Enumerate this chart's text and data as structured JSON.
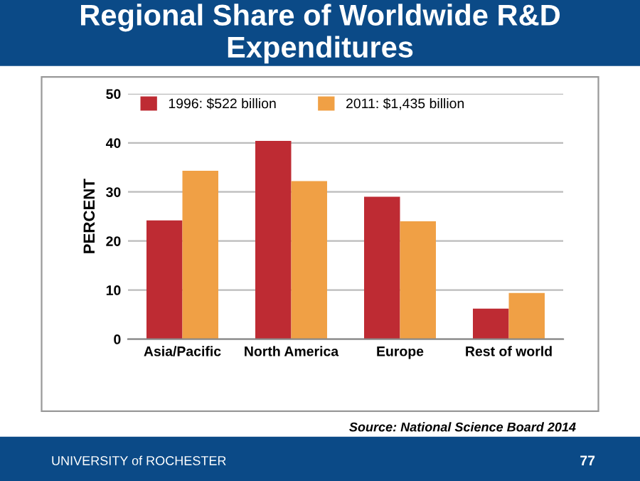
{
  "chart_data": {
    "type": "bar",
    "title": "Regional Share of Worldwide R&D Expenditures",
    "ylabel": "PERCENT",
    "categories": [
      "Asia/Pacific",
      "North America",
      "Europe",
      "Rest of world"
    ],
    "series": [
      {
        "name": "1996: $522 billion",
        "color": "#be2b33",
        "values": [
          24.2,
          40.4,
          29.0,
          6.2
        ]
      },
      {
        "name": "2011: $1,435 billion",
        "color": "#f0a045",
        "values": [
          34.3,
          32.2,
          24.0,
          9.4
        ]
      }
    ],
    "ylim": [
      0,
      50
    ],
    "yticks": [
      0,
      10,
      20,
      30,
      40,
      50
    ],
    "grid": "y",
    "legend": "top left",
    "annotations": [
      "Source: National Science Board 2014",
      "UNIVERSITY of ROCHESTER",
      "77"
    ]
  }
}
